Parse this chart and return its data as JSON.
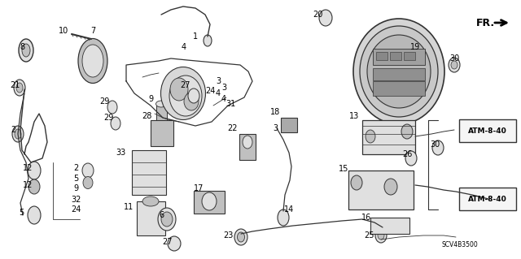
{
  "bg_color": "#ffffff",
  "line_color": "#333333",
  "fill_color": "#e0e0e0",
  "dark_fill": "#c0c0c0",
  "font_size": 7,
  "fig_width": 6.4,
  "fig_height": 3.19,
  "fr_text": "FR.",
  "atm_text_1": "ATM-8-40",
  "atm_text_2": "ATM-8-40",
  "scv_text": "SCV4B3500"
}
